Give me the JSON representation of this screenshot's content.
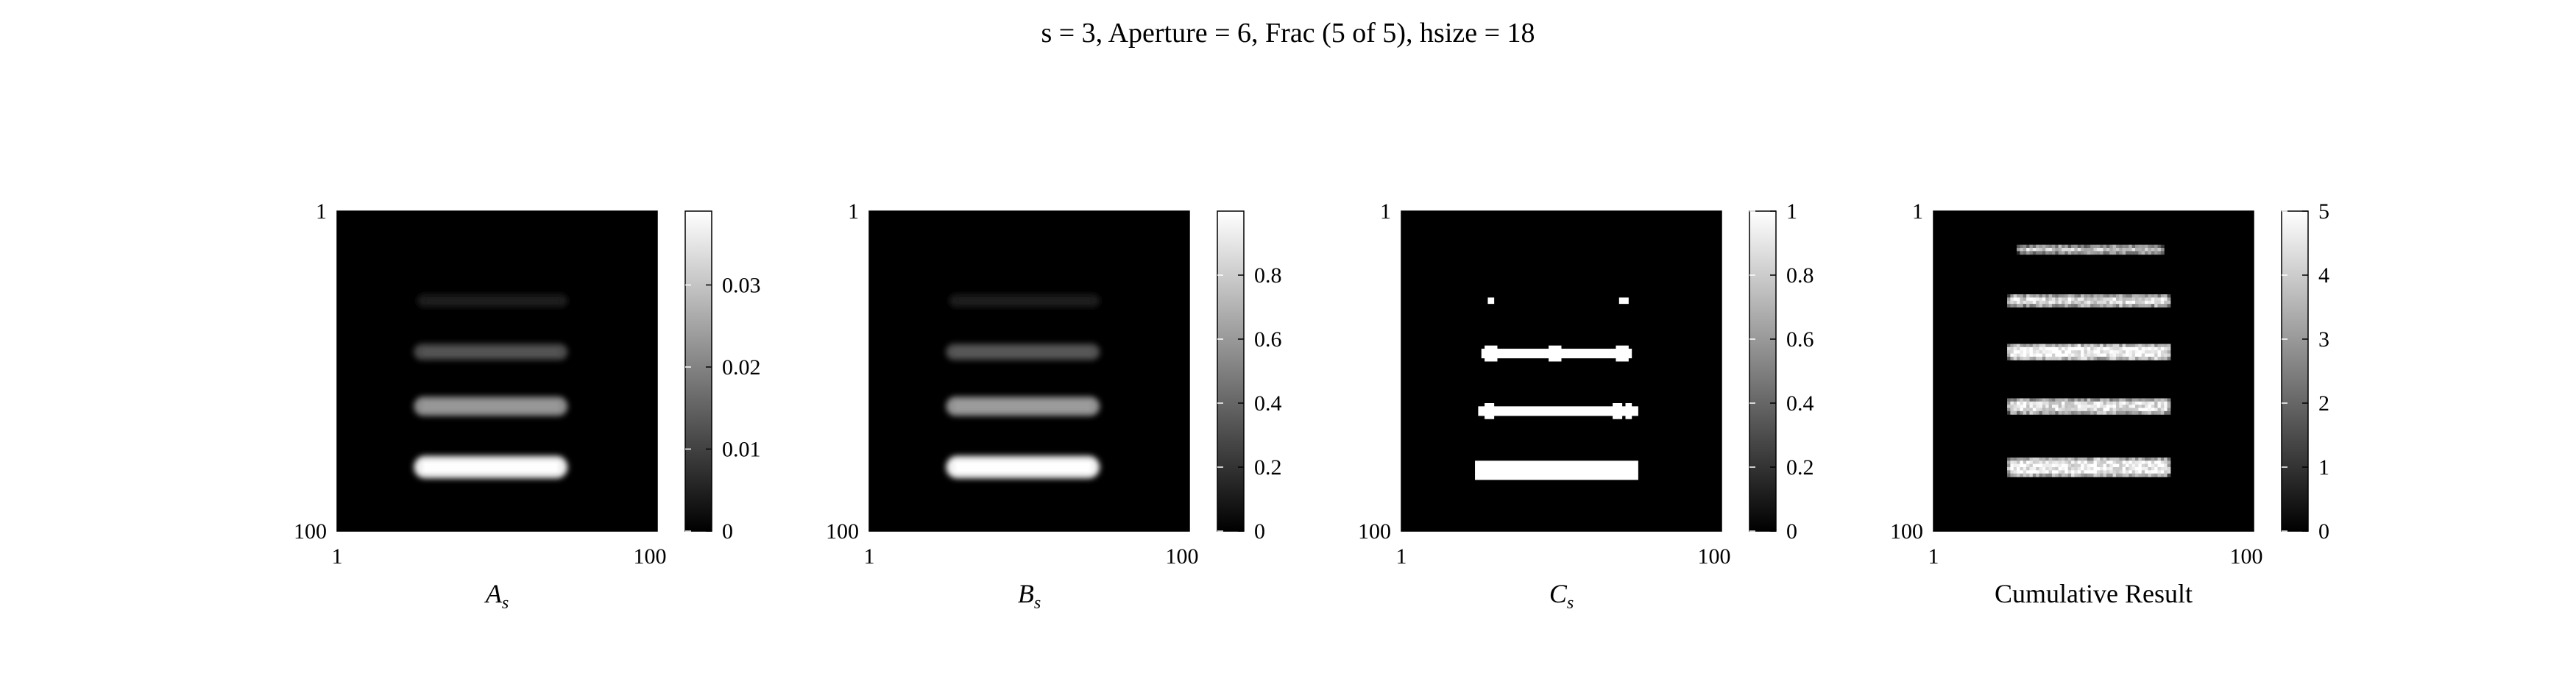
{
  "chart_data": {
    "type": "heatmap",
    "title": "s = 3, Aperture = 6, Frac (5 of 5), hsize = 18",
    "colormap": "gray",
    "panels": [
      {
        "name": "A",
        "xlabel": "A",
        "xlabel_sub": "s",
        "x_ticks": [
          "1",
          "100"
        ],
        "y_ticks": [
          "1",
          "100"
        ],
        "xlim": [
          1,
          100
        ],
        "ylim": [
          1,
          100
        ],
        "colorbar": {
          "min": 0,
          "max": 0.039,
          "ticks": [
            0,
            0.01,
            0.02,
            0.03
          ],
          "tick_labels": [
            "0",
            "0.01",
            "0.02",
            "0.03"
          ]
        },
        "style": "blur",
        "bars": [
          {
            "row": 29,
            "x_start": 26,
            "x_end": 73,
            "half_height": 1.5,
            "intensity": 0.004
          },
          {
            "row": 45,
            "x_start": 25,
            "x_end": 73,
            "half_height": 2,
            "intensity": 0.012
          },
          {
            "row": 62,
            "x_start": 25,
            "x_end": 73,
            "half_height": 2.5,
            "intensity": 0.022
          },
          {
            "row": 81,
            "x_start": 25,
            "x_end": 73,
            "half_height": 3,
            "intensity": 0.037
          }
        ]
      },
      {
        "name": "B",
        "xlabel": "B",
        "xlabel_sub": "s",
        "x_ticks": [
          "1",
          "100"
        ],
        "y_ticks": [
          "1",
          "100"
        ],
        "xlim": [
          1,
          100
        ],
        "ylim": [
          1,
          100
        ],
        "colorbar": {
          "min": 0,
          "max": 1,
          "ticks": [
            0,
            0.2,
            0.4,
            0.6,
            0.8
          ],
          "tick_labels": [
            "0",
            "0.2",
            "0.4",
            "0.6",
            "0.8"
          ]
        },
        "style": "blur",
        "bars": [
          {
            "row": 29,
            "x_start": 26,
            "x_end": 73,
            "half_height": 1.5,
            "intensity": 0.11
          },
          {
            "row": 45,
            "x_start": 25,
            "x_end": 73,
            "half_height": 2,
            "intensity": 0.32
          },
          {
            "row": 62,
            "x_start": 25,
            "x_end": 73,
            "half_height": 2.5,
            "intensity": 0.58
          },
          {
            "row": 81,
            "x_start": 25,
            "x_end": 73,
            "half_height": 3,
            "intensity": 0.96
          }
        ]
      },
      {
        "name": "C",
        "xlabel": "C",
        "xlabel_sub": "s",
        "x_ticks": [
          "1",
          "100"
        ],
        "y_ticks": [
          "1",
          "100"
        ],
        "xlim": [
          1,
          100
        ],
        "ylim": [
          1,
          100
        ],
        "colorbar": {
          "min": 0,
          "max": 1,
          "ticks": [
            0,
            0.2,
            0.4,
            0.6,
            0.8,
            1
          ],
          "tick_labels": [
            "0",
            "0.2",
            "0.4",
            "0.6",
            "0.8",
            "1"
          ]
        },
        "style": "binary",
        "blocks": [
          {
            "x0": 28,
            "x1": 29,
            "y0": 28,
            "y1": 29
          },
          {
            "x0": 69,
            "x1": 71,
            "y0": 28,
            "y1": 29
          },
          {
            "x0": 26,
            "x1": 72,
            "y0": 44,
            "y1": 46
          },
          {
            "x0": 27,
            "x1": 30,
            "y0": 43,
            "y1": 47
          },
          {
            "x0": 47,
            "x1": 50,
            "y0": 43,
            "y1": 47
          },
          {
            "x0": 68,
            "x1": 71,
            "y0": 43,
            "y1": 47
          },
          {
            "x0": 25,
            "x1": 74,
            "y0": 62,
            "y1": 64
          },
          {
            "x0": 27,
            "x1": 29,
            "y0": 61,
            "y1": 65
          },
          {
            "x0": 67,
            "x1": 69,
            "y0": 61,
            "y1": 65
          },
          {
            "x0": 71,
            "x1": 72,
            "y0": 61,
            "y1": 65
          },
          {
            "x0": 24,
            "x1": 74,
            "y0": 79,
            "y1": 84
          }
        ]
      },
      {
        "name": "Cumulative",
        "xlabel": "Cumulative Result",
        "xlabel_sub": "",
        "x_ticks": [
          "1",
          "100"
        ],
        "y_ticks": [
          "1",
          "100"
        ],
        "xlim": [
          1,
          100
        ],
        "ylim": [
          1,
          100
        ],
        "colorbar": {
          "min": 0,
          "max": 5,
          "ticks": [
            0,
            1,
            2,
            3,
            4,
            5
          ],
          "tick_labels": [
            "0",
            "1",
            "2",
            "3",
            "4",
            "5"
          ]
        },
        "style": "noisy",
        "bars": [
          {
            "row": 13,
            "x_start": 27,
            "x_end": 72,
            "half_height": 1,
            "intensity": 4.0
          },
          {
            "row": 29,
            "x_start": 24,
            "x_end": 74,
            "half_height": 1.5,
            "intensity": 4.3
          },
          {
            "row": 45,
            "x_start": 24,
            "x_end": 74,
            "half_height": 2,
            "intensity": 4.8
          },
          {
            "row": 62,
            "x_start": 24,
            "x_end": 74,
            "half_height": 2,
            "intensity": 4.4
          },
          {
            "row": 81,
            "x_start": 24,
            "x_end": 74,
            "half_height": 2.5,
            "intensity": 4.6
          }
        ]
      }
    ]
  }
}
